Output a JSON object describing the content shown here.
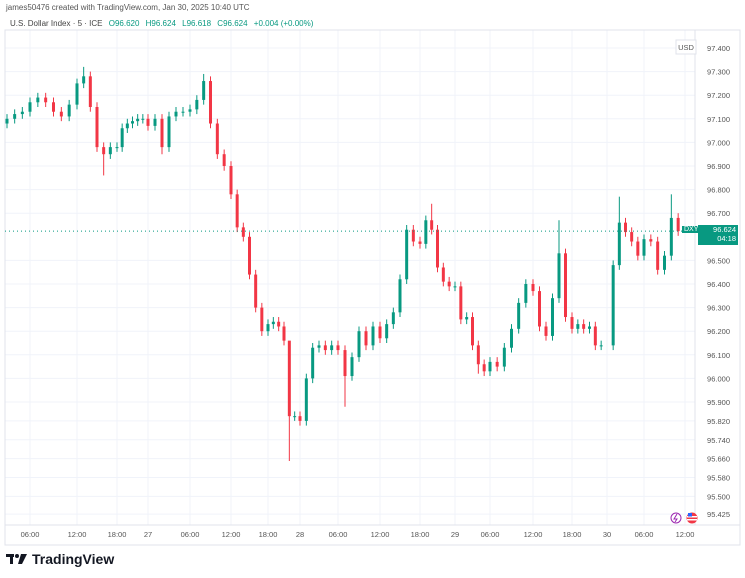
{
  "header": {
    "credit": "james50476 created with TradingView.com, Jan 30, 2025 10:40 UTC"
  },
  "legend": {
    "symbol": "U.S. Dollar Index · 5 · ICE",
    "open": "O96.620",
    "high": "H96.624",
    "low": "L96.618",
    "close": "C96.624",
    "change": "+0.004 (+0.00%)"
  },
  "price_tag": {
    "ticker": "DXY",
    "price": "96.624",
    "countdown": "04:18"
  },
  "logo": {
    "text": "TradingView"
  },
  "icons": [
    "lightning-event-icon",
    "us-flag-icon"
  ],
  "colors": {
    "up": "#089981",
    "down": "#f23645",
    "grid": "#f0f3fa",
    "last_price_line": "#089981"
  },
  "chart_data": {
    "type": "candlestick",
    "title": "U.S. Dollar Index · 5 · ICE",
    "currency_label": "USD",
    "last_price": 96.624,
    "ylim": [
      95.42,
      97.48
    ],
    "grid": true,
    "y_ticks": [
      "97.400",
      "97.300",
      "97.200",
      "97.100",
      "97.000",
      "96.900",
      "96.800",
      "96.700",
      "96.500",
      "96.400",
      "96.300",
      "96.200",
      "96.100",
      "96.000",
      "95.900",
      "95.820",
      "95.740",
      "95.660",
      "95.580",
      "95.500",
      "95.425"
    ],
    "x_ticks": [
      {
        "label": "06:00",
        "t": "01-26 06:00"
      },
      {
        "label": "12:00",
        "t": "01-26 12:00"
      },
      {
        "label": "18:00",
        "t": "01-26 18:00"
      },
      {
        "label": "27",
        "t": "01-27 00:00"
      },
      {
        "label": "06:00",
        "t": "01-27 06:00"
      },
      {
        "label": "12:00",
        "t": "01-27 12:00"
      },
      {
        "label": "18:00",
        "t": "01-27 18:00"
      },
      {
        "label": "28",
        "t": "01-28 00:00"
      },
      {
        "label": "06:00",
        "t": "01-28 06:00"
      },
      {
        "label": "12:00",
        "t": "01-28 12:00"
      },
      {
        "label": "18:00",
        "t": "01-28 18:00"
      },
      {
        "label": "29",
        "t": "01-29 00:00"
      },
      {
        "label": "06:00",
        "t": "01-29 06:00"
      },
      {
        "label": "12:00",
        "t": "01-29 12:00"
      },
      {
        "label": "18:00",
        "t": "01-29 18:00"
      },
      {
        "label": "30",
        "t": "01-30 00:00"
      },
      {
        "label": "06:00",
        "t": "01-30 06:00"
      },
      {
        "label": "12:00",
        "t": "01-30 12:00"
      }
    ],
    "closes": [
      [
        "01-26 03:00",
        97.1
      ],
      [
        "01-26 04:00",
        97.12
      ],
      [
        "01-26 05:00",
        97.13
      ],
      [
        "01-26 06:00",
        97.17
      ],
      [
        "01-26 07:00",
        97.19
      ],
      [
        "01-26 08:00",
        97.17
      ],
      [
        "01-26 09:00",
        97.13
      ],
      [
        "01-26 10:00",
        97.11
      ],
      [
        "01-26 11:00",
        97.16
      ],
      [
        "01-26 12:00",
        97.25
      ],
      [
        "01-26 13:00",
        97.28
      ],
      [
        "01-26 14:00",
        97.15
      ],
      [
        "01-26 15:00",
        96.98
      ],
      [
        "01-26 16:00",
        96.95
      ],
      [
        "01-26 17:00",
        96.98
      ],
      [
        "01-26 18:00",
        96.98
      ],
      [
        "01-26 19:00",
        97.06
      ],
      [
        "01-26 20:00",
        97.08
      ],
      [
        "01-26 21:00",
        97.09
      ],
      [
        "01-26 22:00",
        97.1
      ],
      [
        "01-26 23:00",
        97.1
      ],
      [
        "01-27 00:00",
        97.07
      ],
      [
        "01-27 01:00",
        97.1
      ],
      [
        "01-27 02:00",
        96.98
      ],
      [
        "01-27 03:00",
        97.11
      ],
      [
        "01-27 04:00",
        97.13
      ],
      [
        "01-27 05:00",
        97.13
      ],
      [
        "01-27 06:00",
        97.14
      ],
      [
        "01-27 07:00",
        97.18
      ],
      [
        "01-27 08:00",
        97.26
      ],
      [
        "01-27 09:00",
        97.08
      ],
      [
        "01-27 10:00",
        96.95
      ],
      [
        "01-27 11:00",
        96.9
      ],
      [
        "01-27 12:00",
        96.78
      ],
      [
        "01-27 13:00",
        96.64
      ],
      [
        "01-27 14:00",
        96.6
      ],
      [
        "01-27 15:00",
        96.44
      ],
      [
        "01-27 16:00",
        96.3
      ],
      [
        "01-27 17:00",
        96.2
      ],
      [
        "01-27 18:00",
        96.23
      ],
      [
        "01-27 19:00",
        96.24
      ],
      [
        "01-27 20:00",
        96.22
      ],
      [
        "01-27 21:00",
        96.16
      ],
      [
        "01-27 22:00",
        95.84
      ],
      [
        "01-27 23:00",
        95.84
      ],
      [
        "01-28 00:00",
        95.82
      ],
      [
        "01-28 01:00",
        96.0
      ],
      [
        "01-28 02:00",
        96.13
      ],
      [
        "01-28 03:00",
        96.14
      ],
      [
        "01-28 04:00",
        96.12
      ],
      [
        "01-28 05:00",
        96.14
      ],
      [
        "01-28 06:00",
        96.12
      ],
      [
        "01-28 07:00",
        96.01
      ],
      [
        "01-28 08:00",
        96.09
      ],
      [
        "01-28 09:00",
        96.2
      ],
      [
        "01-28 10:00",
        96.14
      ],
      [
        "01-28 11:00",
        96.22
      ],
      [
        "01-28 12:00",
        96.17
      ],
      [
        "01-28 13:00",
        96.23
      ],
      [
        "01-28 14:00",
        96.28
      ],
      [
        "01-28 15:00",
        96.42
      ],
      [
        "01-28 16:00",
        96.63
      ],
      [
        "01-28 17:00",
        96.58
      ],
      [
        "01-28 18:00",
        96.57
      ],
      [
        "01-28 19:00",
        96.67
      ],
      [
        "01-28 20:00",
        96.63
      ],
      [
        "01-28 21:00",
        96.47
      ],
      [
        "01-28 22:00",
        96.41
      ],
      [
        "01-28 23:00",
        96.39
      ],
      [
        "01-29 00:00",
        96.39
      ],
      [
        "01-29 01:00",
        96.25
      ],
      [
        "01-29 02:00",
        96.26
      ],
      [
        "01-29 03:00",
        96.14
      ],
      [
        "01-29 04:00",
        96.06
      ],
      [
        "01-29 05:00",
        96.03
      ],
      [
        "01-29 06:00",
        96.07
      ],
      [
        "01-29 07:00",
        96.05
      ],
      [
        "01-29 08:00",
        96.13
      ],
      [
        "01-29 09:00",
        96.21
      ],
      [
        "01-29 10:00",
        96.32
      ],
      [
        "01-29 11:00",
        96.4
      ],
      [
        "01-29 12:00",
        96.37
      ],
      [
        "01-29 13:00",
        96.22
      ],
      [
        "01-29 14:00",
        96.18
      ],
      [
        "01-29 15:00",
        96.34
      ],
      [
        "01-29 16:00",
        96.53
      ],
      [
        "01-29 17:00",
        96.26
      ],
      [
        "01-29 18:00",
        96.21
      ],
      [
        "01-29 19:00",
        96.23
      ],
      [
        "01-29 20:00",
        96.21
      ],
      [
        "01-29 21:00",
        96.22
      ],
      [
        "01-29 22:00",
        96.14
      ],
      [
        "01-29 23:00",
        96.14
      ],
      [
        "01-30 01:00",
        96.48
      ],
      [
        "01-30 02:00",
        96.66
      ],
      [
        "01-30 03:00",
        96.62
      ],
      [
        "01-30 04:00",
        96.58
      ],
      [
        "01-30 05:00",
        96.52
      ],
      [
        "01-30 06:00",
        96.59
      ],
      [
        "01-30 07:00",
        96.58
      ],
      [
        "01-30 08:00",
        96.46
      ],
      [
        "01-30 09:00",
        96.52
      ],
      [
        "01-30 10:00",
        96.68
      ],
      [
        "01-30 11:00",
        96.624
      ]
    ],
    "extremes": [
      {
        "t": "01-26 13:00",
        "high": 97.32
      },
      {
        "t": "01-26 16:00",
        "low": 96.86
      },
      {
        "t": "01-27 02:00",
        "low": 96.95
      },
      {
        "t": "01-27 08:00",
        "high": 97.29
      },
      {
        "t": "01-27 22:00",
        "high": 95.9,
        "low": 95.65
      },
      {
        "t": "01-28 07:00",
        "low": 95.88
      },
      {
        "t": "01-28 20:00",
        "high": 96.74
      },
      {
        "t": "01-29 04:00",
        "low": 96.02
      },
      {
        "t": "01-29 16:00",
        "high": 96.67
      },
      {
        "t": "01-30 02:00",
        "high": 96.77
      },
      {
        "t": "01-30 10:00",
        "high": 96.78
      }
    ]
  }
}
